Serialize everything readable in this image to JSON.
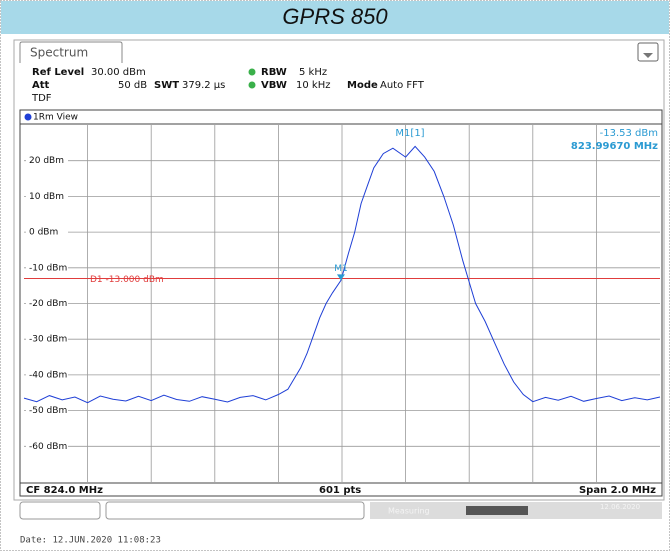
{
  "chart_data": {
    "type": "line",
    "title": "GPRS 850",
    "xlim": [
      823.0,
      825.0
    ],
    "ylim": [
      -70,
      30
    ],
    "yticks": [
      {
        "value": 20,
        "label": "20 dBm"
      },
      {
        "value": 10,
        "label": "10 dBm"
      },
      {
        "value": 0,
        "label": "0 dBm"
      },
      {
        "value": -10,
        "label": "-10 dBm"
      },
      {
        "value": -20,
        "label": "-20 dBm"
      },
      {
        "value": -30,
        "label": "-30 dBm"
      },
      {
        "value": -40,
        "label": "-40 dBm"
      },
      {
        "value": -50,
        "label": "-50 dBm"
      },
      {
        "value": -60,
        "label": "-60 dBm"
      }
    ],
    "grid": true,
    "series": [
      {
        "name": "1Rm View",
        "color": "#1f3fd6",
        "x": [
          823.0,
          823.04,
          823.08,
          823.12,
          823.16,
          823.2,
          823.24,
          823.28,
          823.32,
          823.36,
          823.4,
          823.44,
          823.48,
          823.52,
          823.56,
          823.6,
          823.64,
          823.68,
          823.72,
          823.76,
          823.8,
          823.83,
          823.85,
          823.87,
          823.89,
          823.91,
          823.93,
          823.95,
          823.97,
          823.997,
          824.02,
          824.04,
          824.06,
          824.08,
          824.1,
          824.13,
          824.16,
          824.2,
          824.23,
          824.26,
          824.29,
          824.32,
          824.35,
          824.38,
          824.4,
          824.42,
          824.45,
          824.48,
          824.51,
          824.54,
          824.57,
          824.6,
          824.64,
          824.68,
          824.72,
          824.76,
          824.8,
          824.84,
          824.88,
          824.92,
          824.96,
          825.0
        ],
        "values": [
          -46.5,
          -47.5,
          -45.8,
          -47,
          -46.2,
          -47.8,
          -45.9,
          -46.8,
          -47.3,
          -46,
          -47.2,
          -45.7,
          -46.9,
          -47.4,
          -46.1,
          -46.8,
          -47.6,
          -46.3,
          -45.8,
          -47,
          -45.5,
          -44,
          -41,
          -38,
          -34,
          -29,
          -24,
          -20,
          -17,
          -13.5,
          -6,
          0,
          8,
          13,
          18,
          22,
          23.5,
          21,
          24,
          21,
          17,
          10,
          2,
          -8,
          -14,
          -20,
          -25,
          -31,
          -37,
          -42,
          -45.5,
          -47.5,
          -46.3,
          -47.1,
          -46,
          -47.4,
          -46.6,
          -45.9,
          -47.2,
          -46.4,
          -47,
          -46.2
        ]
      }
    ],
    "ref_line": {
      "label": "D1 -13.000 dBm",
      "value": -13,
      "color": "#e03c3c"
    },
    "marker": {
      "name": "M1",
      "header": "M1[1]",
      "x": 823.9967,
      "value": -13.53,
      "value_label": "-13.53 dBm",
      "x_label": "823.99670 MHz",
      "color": "#2a9ad2"
    }
  },
  "instrument": {
    "tab": "Spectrum",
    "ref_level_label": "Ref Level",
    "ref_level": "30.00 dBm",
    "att_label": "Att",
    "att": "50 dB",
    "swt_label": "SWT",
    "swt": "379.2 µs",
    "rbw_label": "RBW",
    "rbw": "5 kHz",
    "vbw_label": "VBW",
    "vbw": "10 kHz",
    "mode_label": "Mode",
    "mode": "Auto FFT",
    "tdf": "TDF",
    "footer": {
      "cf": "CF 824.0 MHz",
      "pts": "601 pts",
      "span": "Span 2.0 MHz"
    },
    "status": {
      "measuring": "Measuring",
      "date_small": "12.06.2020"
    },
    "date": "Date: 12.JUN.2020  11:08:23"
  }
}
